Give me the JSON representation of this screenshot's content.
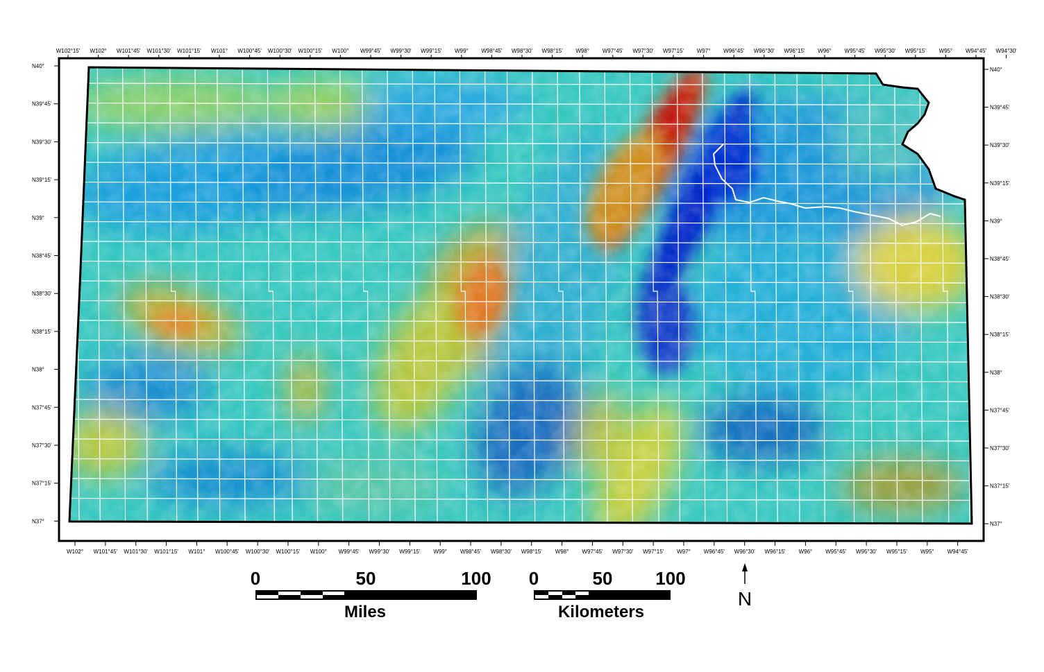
{
  "map": {
    "top_longitude_labels": [
      "W102°15'",
      "W102°",
      "W101°45'",
      "W101°30'",
      "W101°15'",
      "W101°",
      "W100°45'",
      "W100°30'",
      "W100°15'",
      "W100°",
      "W99°45'",
      "W99°30'",
      "W99°15'",
      "W99°",
      "W98°45'",
      "W98°30'",
      "W98°15'",
      "W98°",
      "W97°45'",
      "W97°30'",
      "W97°15'",
      "W97°",
      "W96°45'",
      "W96°30'",
      "W96°15'",
      "W96°",
      "W95°45'",
      "W95°30'",
      "W95°15'",
      "W95°",
      "W94°45'",
      "W94°30'"
    ],
    "bottom_longitude_labels": [
      "W102°",
      "W101°45'",
      "W101°30'",
      "W101°15'",
      "W101°",
      "W100°45'",
      "W100°30'",
      "W100°15'",
      "W100°",
      "W99°45'",
      "W99°30'",
      "W99°15'",
      "W99°",
      "W98°45'",
      "W98°30'",
      "W98°15'",
      "W98°",
      "W97°45'",
      "W97°30'",
      "W97°15'",
      "W97°",
      "W96°45'",
      "W96°30'",
      "W96°15'",
      "W96°",
      "W95°45'",
      "W95°30'",
      "W95°15'",
      "W95°",
      "W94°45'"
    ],
    "latitude_labels": [
      "N40°",
      "N39°45'",
      "N39°30'",
      "N39°15'",
      "N39°",
      "N38°45'",
      "N38°30'",
      "N38°15'",
      "N38°",
      "N37°45'",
      "N37°30'",
      "N37°15'",
      "N37°"
    ],
    "colors": {
      "low": "#0014c8",
      "mid_low": "#1aa0dc",
      "mid": "#3cd6c8",
      "mid_high": "#b4d63c",
      "high": "#e0a020",
      "max": "#a01010",
      "grid": "#ffffff",
      "outline": "#000000"
    }
  },
  "scale_miles": {
    "labels": [
      "0",
      "50",
      "100"
    ],
    "unit": "Miles"
  },
  "scale_km": {
    "labels": [
      "0",
      "50",
      "100"
    ],
    "unit": "Kilometers"
  },
  "north_arrow": {
    "label": "N",
    "icon": "north-arrow-icon"
  }
}
